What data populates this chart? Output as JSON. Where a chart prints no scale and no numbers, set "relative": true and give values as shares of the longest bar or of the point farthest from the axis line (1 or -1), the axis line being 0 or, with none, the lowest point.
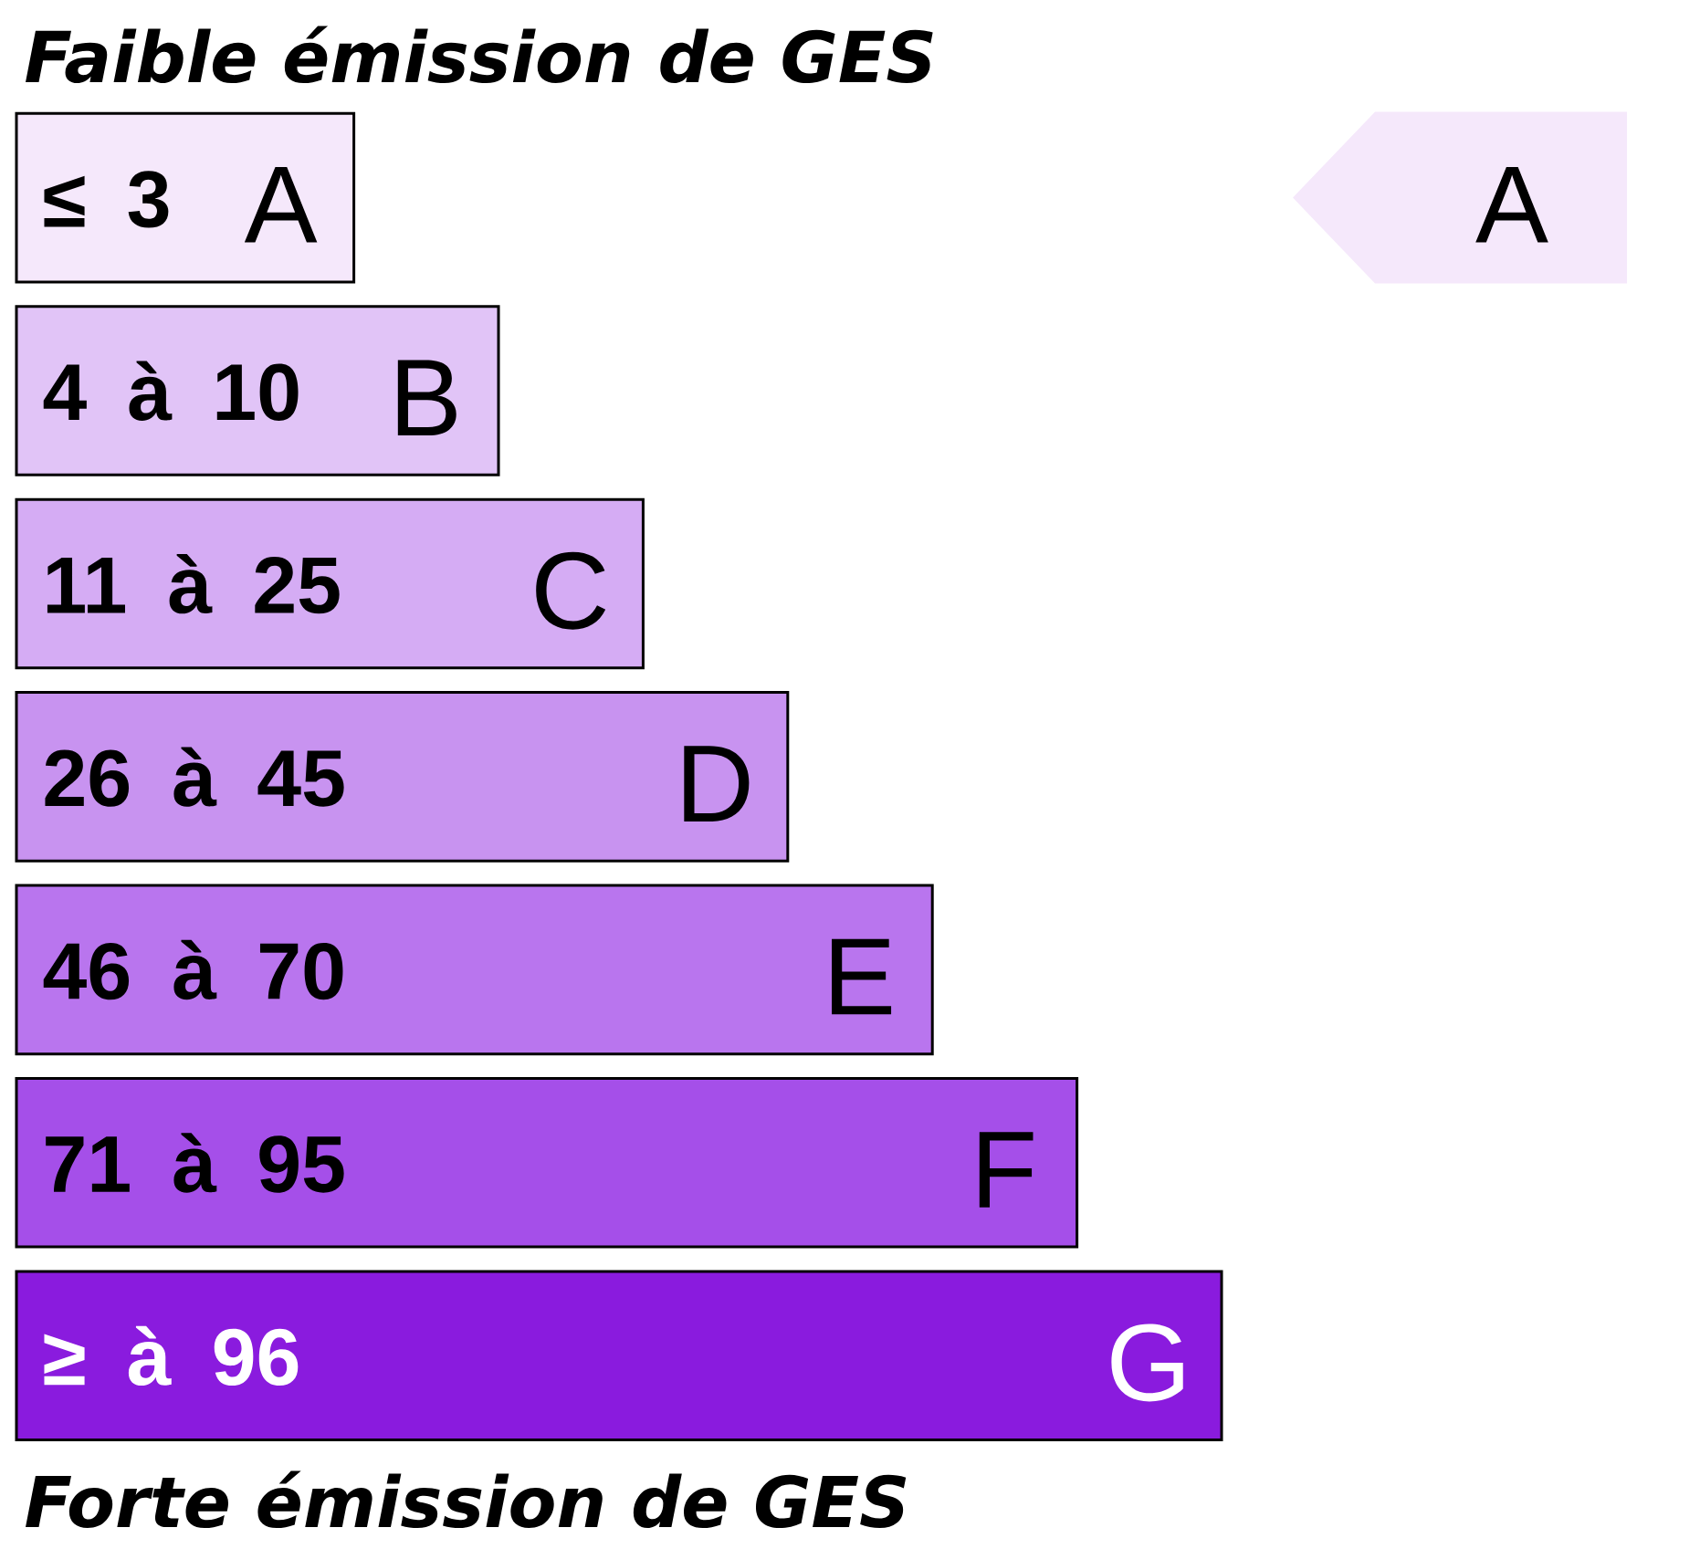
{
  "chart_data": {
    "type": "bar",
    "orientation": "horizontal",
    "relative": true,
    "title": "Faible émission de GES",
    "categories": [
      "≤ 3",
      "4 à 10",
      "11 à 25",
      "26 à 45",
      "46 à 70",
      "71 à 95",
      "≥ à 96"
    ],
    "values": [
      0.28,
      0.4,
      0.52,
      0.64,
      0.76,
      0.88,
      1
    ],
    "colors": [
      "#f5e8fb",
      "#e1c4f7",
      "#d5acf4",
      "#c893f0",
      "#b975ee",
      "#a54fe9",
      "#8a1bde"
    ],
    "annotations": [
      {
        "text": "A",
        "x": 0.28,
        "y": "≤ 3"
      },
      {
        "text": "B",
        "x": 0.4,
        "y": "4 à 10"
      },
      {
        "text": "C",
        "x": 0.52,
        "y": "11 à 25"
      },
      {
        "text": "D",
        "x": 0.64,
        "y": "26 à 45"
      },
      {
        "text": "E",
        "x": 0.76,
        "y": "46 à 70"
      },
      {
        "text": "F",
        "x": 0.88,
        "y": "71 à 95"
      },
      {
        "text": "G",
        "x": 1,
        "y": "≥ à 96"
      },
      "A",
      "Forte émission de GES"
    ]
  }
}
